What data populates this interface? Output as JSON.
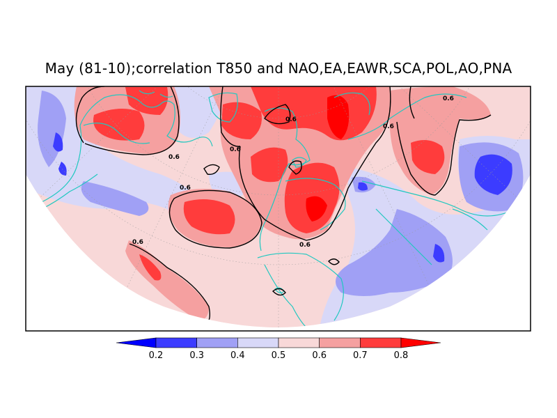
{
  "title": "May (81-10);correlation T850 and NAO,EA,EAWR,SCA,POL,AO,PNA",
  "map": {
    "projection": "north-polar-stereographic-half-disc",
    "variable": "correlation T850",
    "contour_level": "0.6",
    "contour_labels": [
      "0.6",
      "0.6",
      "0.6",
      "0.6",
      "0.6",
      "0.6",
      "0.6",
      "0.6"
    ]
  },
  "colorbar": {
    "ticks": [
      "0.2",
      "0.3",
      "0.4",
      "0.5",
      "0.6",
      "0.7",
      "0.8"
    ],
    "colors": [
      "#0000ff",
      "#3c3cff",
      "#a0a0f5",
      "#d8d8f8",
      "#f8d8d8",
      "#f5a0a0",
      "#ff3c3c",
      "#ff0000"
    ]
  }
}
